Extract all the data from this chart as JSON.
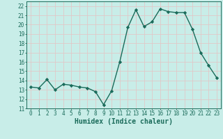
{
  "x": [
    0,
    1,
    2,
    3,
    4,
    5,
    6,
    7,
    8,
    9,
    10,
    11,
    12,
    13,
    14,
    15,
    16,
    17,
    18,
    19,
    20,
    21,
    22,
    23
  ],
  "y": [
    13.3,
    13.2,
    14.1,
    13.0,
    13.6,
    13.5,
    13.3,
    13.2,
    12.8,
    11.4,
    12.9,
    16.0,
    19.7,
    21.6,
    19.8,
    20.3,
    21.7,
    21.4,
    21.3,
    21.3,
    19.5,
    17.0,
    15.6,
    14.3
  ],
  "line_color": "#1a6b5a",
  "marker": "D",
  "marker_size": 2.2,
  "bg_color": "#c8ede8",
  "grid_color": "#e0c8c8",
  "xlabel": "Humidex (Indice chaleur)",
  "xlim": [
    -0.5,
    23.5
  ],
  "ylim": [
    11,
    22.5
  ],
  "yticks": [
    11,
    12,
    13,
    14,
    15,
    16,
    17,
    18,
    19,
    20,
    21,
    22
  ],
  "xticks": [
    0,
    1,
    2,
    3,
    4,
    5,
    6,
    7,
    8,
    9,
    10,
    11,
    12,
    13,
    14,
    15,
    16,
    17,
    18,
    19,
    20,
    21,
    22,
    23
  ],
  "tick_fontsize": 5.5,
  "label_fontsize": 7.0,
  "line_width": 1.0
}
